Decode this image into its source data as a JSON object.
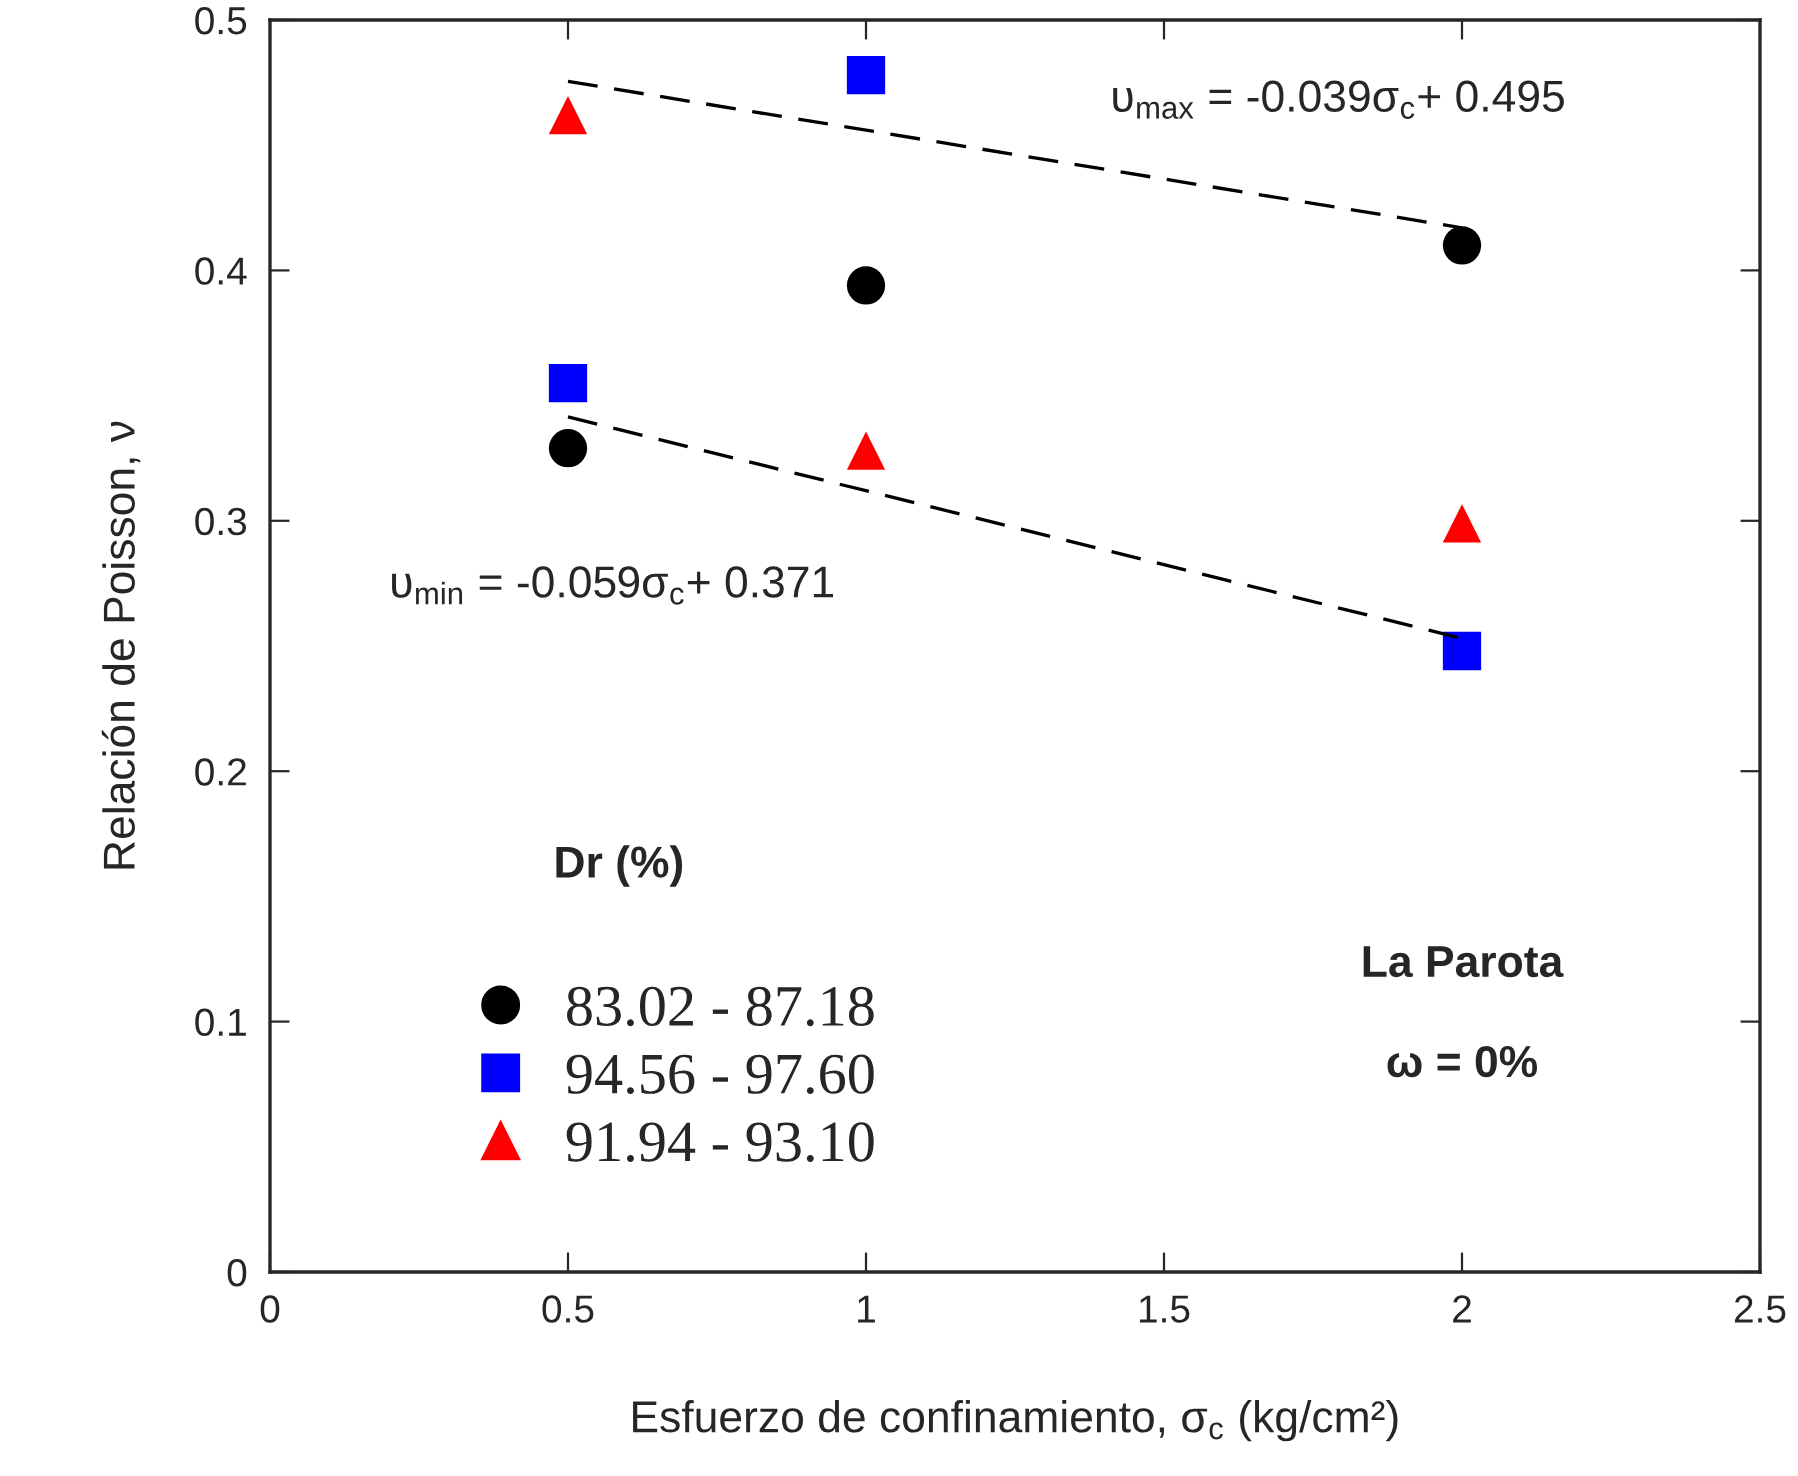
{
  "chart_data": {
    "type": "scatter",
    "xlabel": "Esfuerzo de confinamiento, σ$_{c}$ (kg/cm²)",
    "ylabel": "Relación de Poisson, ν",
    "legend_title": "Dr (%)",
    "xlim": [
      0,
      2.5
    ],
    "xticks": [
      0,
      0.5,
      1,
      1.5,
      2,
      2.5
    ],
    "ylim": [
      0,
      0.5
    ],
    "yticks": [
      0,
      0.1,
      0.2,
      0.3,
      0.4,
      0.5
    ],
    "grid": false,
    "legend": "bottom left",
    "series": [
      {
        "name": "83.02 - 87.18",
        "marker": "circle",
        "color": "#000000",
        "x": [
          0.5,
          1,
          2
        ],
        "values": [
          0.329,
          0.394,
          0.41
        ]
      },
      {
        "name": "94.56 - 97.60",
        "marker": "square",
        "color": "#0000ff",
        "x": [
          0.5,
          1,
          2
        ],
        "values": [
          0.355,
          0.478,
          0.248
        ]
      },
      {
        "name": "91.94 - 93.10",
        "marker": "triangle",
        "color": "#ff0000",
        "x": [
          0.5,
          1,
          2
        ],
        "values": [
          0.462,
          0.328,
          0.299
        ]
      },
      {
        "type": "line",
        "marker": "none",
        "line_style": "dashed",
        "color": "#000000",
        "x": [
          0.5,
          2
        ],
        "values": [
          0.4755,
          0.417
        ]
      },
      {
        "type": "line",
        "marker": "none",
        "line_style": "dashed",
        "color": "#000000",
        "x": [
          0.5,
          2
        ],
        "values": [
          0.3415,
          0.253
        ]
      }
    ],
    "annotations": [
      "υ$_{max}$ = -0.039σ$_{c}$+ 0.495",
      "υ$_{min}$ = -0.059σ$_{c}$+ 0.371",
      "La Parota",
      "ω = 0%"
    ]
  }
}
